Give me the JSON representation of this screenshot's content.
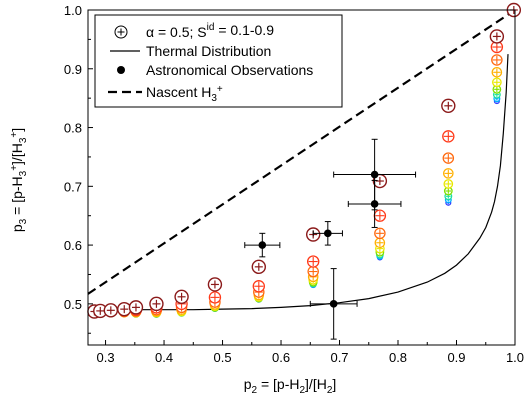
{
  "chart_data": {
    "type": "scatter",
    "xlabel_parts": [
      "p",
      "2",
      " = [p-H",
      "2",
      "]/[H",
      "2",
      "]"
    ],
    "ylabel_parts": [
      "p",
      "3",
      " = [p-H",
      "3",
      "+",
      "]/[H",
      "3",
      "+",
      "]"
    ],
    "xlim": [
      0.27,
      1.0
    ],
    "ylim": [
      0.43,
      1.0
    ],
    "xticks": [
      0.3,
      0.4,
      0.5,
      0.6,
      0.7,
      0.8,
      0.9,
      1.0
    ],
    "xtick_labels": [
      "0.3",
      "0.4",
      "0.5",
      "0.6",
      "0.7",
      "0.8",
      "0.9",
      "1.0"
    ],
    "yticks": [
      0.5,
      0.6,
      0.7,
      0.8,
      0.9,
      1.0
    ],
    "ytick_labels": [
      "0.5",
      "0.6",
      "0.7",
      "0.8",
      "0.9",
      "1.0"
    ],
    "grid": false,
    "legend_position": "top-left",
    "legend": {
      "model_parts": [
        "α = 0.5;  S",
        "id",
        " = 0.1-0.9"
      ],
      "thermal": "Thermal Distribution",
      "observations": "Astronomical Observations",
      "nascent_parts": [
        "Nascent H",
        "3",
        "+"
      ]
    },
    "colors": {
      "model_dark": "#8b1a1a",
      "model_light": "#ff2020",
      "s_gradient": [
        "#ff2020",
        "#ff3a1a",
        "#ff6a10",
        "#ffb000",
        "#e8e800",
        "#80e000",
        "#20e0a0",
        "#00b0ff",
        "#3040ff",
        "#8020c0"
      ],
      "observations": "#000000",
      "curves": "#000000"
    },
    "model_series": [
      {
        "x": 0.281,
        "y": [
          0.487,
          0.487,
          0.487,
          0.487,
          0.487,
          0.487,
          0.487,
          0.487,
          0.487
        ]
      },
      {
        "x": 0.291,
        "y": [
          0.488,
          0.487,
          0.487,
          0.487,
          0.487,
          0.486,
          0.486,
          0.486,
          0.486
        ]
      },
      {
        "x": 0.309,
        "y": [
          0.489,
          0.488,
          0.487,
          0.486,
          0.486,
          0.485,
          0.485,
          0.485,
          0.485
        ]
      },
      {
        "x": 0.332,
        "y": [
          0.491,
          0.489,
          0.487,
          0.486,
          0.485,
          0.485,
          0.484,
          0.484,
          0.484
        ]
      },
      {
        "x": 0.352,
        "y": [
          0.494,
          0.49,
          0.488,
          0.486,
          0.485,
          0.484,
          0.483,
          0.483,
          0.483
        ]
      },
      {
        "x": 0.387,
        "y": [
          0.5,
          0.494,
          0.49,
          0.487,
          0.485,
          0.484,
          0.483,
          0.482,
          0.482
        ]
      },
      {
        "x": 0.43,
        "y": [
          0.512,
          0.5,
          0.494,
          0.49,
          0.487,
          0.486,
          0.485,
          0.484,
          0.484
        ]
      },
      {
        "x": 0.487,
        "y": [
          0.533,
          0.511,
          0.503,
          0.499,
          0.496,
          0.494,
          0.493,
          0.492,
          0.492
        ]
      },
      {
        "x": 0.562,
        "y": [
          0.563,
          0.53,
          0.52,
          0.515,
          0.512,
          0.51,
          0.509,
          0.508,
          0.507
        ]
      },
      {
        "x": 0.655,
        "y": [
          0.618,
          0.572,
          0.555,
          0.546,
          0.541,
          0.537,
          0.535,
          0.533,
          0.532
        ]
      },
      {
        "x": 0.769,
        "y": [
          0.709,
          0.65,
          0.62,
          0.604,
          0.594,
          0.588,
          0.584,
          0.581,
          0.579
        ]
      },
      {
        "x": 0.886,
        "y": [
          0.837,
          0.785,
          0.748,
          0.722,
          0.704,
          0.692,
          0.683,
          0.677,
          0.672
        ]
      },
      {
        "x": 0.969,
        "y": [
          0.955,
          0.937,
          0.915,
          0.894,
          0.877,
          0.865,
          0.856,
          0.849,
          0.845
        ]
      },
      {
        "x": 0.998,
        "y": [
          1.0,
          1.0,
          1.0,
          0.999,
          0.999,
          0.999,
          0.998,
          0.998,
          0.998
        ]
      }
    ],
    "observations": [
      {
        "x": 0.568,
        "y": 0.6,
        "xerr": 0.03,
        "yerr": 0.02
      },
      {
        "x": 0.68,
        "y": 0.62,
        "xerr": 0.025,
        "yerr": 0.02
      },
      {
        "x": 0.69,
        "y": 0.5,
        "xerr": 0.04,
        "yerr": 0.06
      },
      {
        "x": 0.76,
        "y": 0.72,
        "xerr": 0.07,
        "yerr": 0.06
      },
      {
        "x": 0.76,
        "y": 0.67,
        "xerr": 0.045,
        "yerr": 0.04
      }
    ],
    "thermal_curve": [
      [
        0.27,
        0.49
      ],
      [
        0.3,
        0.49
      ],
      [
        0.35,
        0.49
      ],
      [
        0.4,
        0.49
      ],
      [
        0.45,
        0.49
      ],
      [
        0.5,
        0.491
      ],
      [
        0.55,
        0.492
      ],
      [
        0.6,
        0.494
      ],
      [
        0.65,
        0.497
      ],
      [
        0.7,
        0.502
      ],
      [
        0.75,
        0.509
      ],
      [
        0.8,
        0.52
      ],
      [
        0.85,
        0.537
      ],
      [
        0.88,
        0.552
      ],
      [
        0.9,
        0.566
      ],
      [
        0.92,
        0.585
      ],
      [
        0.94,
        0.612
      ],
      [
        0.95,
        0.63
      ],
      [
        0.96,
        0.656
      ],
      [
        0.965,
        0.674
      ],
      [
        0.97,
        0.7
      ],
      [
        0.975,
        0.735
      ],
      [
        0.98,
        0.79
      ],
      [
        0.985,
        0.86
      ],
      [
        0.988,
        0.925
      ]
    ],
    "nascent_line": [
      [
        0.27,
        0.517
      ],
      [
        1.0,
        1.0
      ]
    ]
  }
}
